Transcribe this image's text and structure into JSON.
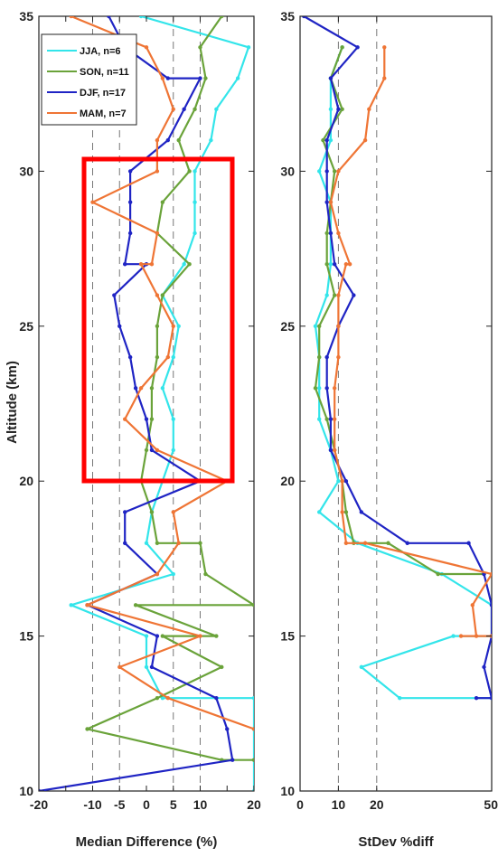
{
  "chart_data": [
    {
      "type": "line",
      "xlabel": "Median Difference (%)",
      "ylabel": "Altitude (km)",
      "xlim": [
        -20,
        20
      ],
      "ylim": [
        10,
        35
      ],
      "xticks": [
        "-20",
        "-15",
        "-10",
        "-5",
        "0",
        "5",
        "10",
        "15",
        "20"
      ],
      "xtick_labels": [
        "-20",
        "-10",
        "-5",
        "0",
        "5",
        "10",
        "20"
      ],
      "yticks": [
        "10",
        "15",
        "20",
        "25",
        "30",
        "35"
      ],
      "reference_lines_x": [
        -10,
        -5,
        5,
        10
      ],
      "legend": {
        "placement": "top-left"
      },
      "series": [
        {
          "name": "JJA, n=6",
          "color": "#33e5ea",
          "points": [
            [
              -1,
              35
            ],
            [
              19,
              34
            ],
            [
              17,
              33
            ],
            [
              13,
              32
            ],
            [
              12,
              31
            ],
            [
              9,
              30
            ],
            [
              9,
              29
            ],
            [
              9,
              28
            ],
            [
              7,
              27
            ],
            [
              3,
              26
            ],
            [
              6,
              25
            ],
            [
              5,
              24
            ],
            [
              3,
              23
            ],
            [
              5,
              22
            ],
            [
              5,
              21
            ],
            [
              3,
              20
            ],
            [
              1,
              19
            ],
            [
              0,
              18
            ],
            [
              5,
              17
            ],
            [
              -14,
              16
            ],
            [
              0,
              15
            ],
            [
              0,
              14
            ],
            [
              3,
              13
            ],
            [
              20,
              13
            ],
            [
              20,
              12
            ],
            [
              20,
              11
            ],
            [
              20,
              10
            ]
          ]
        },
        {
          "name": "SON, n=11",
          "color": "#6aa33a",
          "points": [
            [
              14,
              35
            ],
            [
              10,
              34
            ],
            [
              11,
              33
            ],
            [
              9,
              32
            ],
            [
              6,
              31
            ],
            [
              8,
              30
            ],
            [
              3,
              29
            ],
            [
              2,
              28
            ],
            [
              8,
              27
            ],
            [
              3,
              26
            ],
            [
              2,
              25
            ],
            [
              2,
              24
            ],
            [
              1,
              23
            ],
            [
              1,
              22
            ],
            [
              0,
              21
            ],
            [
              -1,
              20
            ],
            [
              1,
              19
            ],
            [
              2,
              18
            ],
            [
              10,
              18
            ],
            [
              11,
              17
            ],
            [
              20,
              16
            ],
            [
              -2,
              16
            ],
            [
              13,
              15
            ],
            [
              3,
              15
            ],
            [
              14,
              14
            ],
            [
              2,
              13
            ],
            [
              -11,
              12
            ],
            [
              14,
              11
            ],
            [
              20,
              11
            ]
          ]
        },
        {
          "name": "DJF, n=17",
          "color": "#1f24c4",
          "points": [
            [
              -7,
              35
            ],
            [
              -4,
              34
            ],
            [
              4,
              33
            ],
            [
              10,
              33
            ],
            [
              7,
              32
            ],
            [
              4,
              31
            ],
            [
              -3,
              30
            ],
            [
              -3,
              29
            ],
            [
              -3,
              28
            ],
            [
              -4,
              27
            ],
            [
              0,
              27
            ],
            [
              -6,
              26
            ],
            [
              -5,
              25
            ],
            [
              -3,
              24
            ],
            [
              -2,
              23
            ],
            [
              0,
              22
            ],
            [
              1,
              21
            ],
            [
              10,
              20
            ],
            [
              -4,
              19
            ],
            [
              -4,
              18
            ],
            [
              2,
              17
            ],
            [
              -11,
              16
            ],
            [
              2,
              15
            ],
            [
              1,
              14
            ],
            [
              13,
              13
            ],
            [
              15,
              12
            ],
            [
              16,
              11
            ],
            [
              -20,
              10
            ]
          ]
        },
        {
          "name": "MAM, n=7",
          "color": "#ef7535",
          "points": [
            [
              -14,
              35
            ],
            [
              0,
              34
            ],
            [
              3,
              33
            ],
            [
              5,
              32
            ],
            [
              2,
              31
            ],
            [
              2,
              30
            ],
            [
              -10,
              29
            ],
            [
              2,
              28
            ],
            [
              1,
              27
            ],
            [
              -1,
              27
            ],
            [
              2,
              26
            ],
            [
              5,
              25
            ],
            [
              4,
              24
            ],
            [
              -1,
              23
            ],
            [
              -4,
              22
            ],
            [
              2,
              21
            ],
            [
              15,
              20
            ],
            [
              5,
              19
            ],
            [
              6,
              18
            ],
            [
              2,
              17
            ],
            [
              -11,
              16
            ],
            [
              10,
              15
            ],
            [
              -5,
              14
            ],
            [
              4,
              13
            ],
            [
              20,
              12
            ]
          ]
        }
      ]
    },
    {
      "type": "line",
      "xlabel": "StDev %diff",
      "ylabel": "",
      "xlim": [
        0,
        50
      ],
      "ylim": [
        10,
        35
      ],
      "xticks": [
        "0",
        "10",
        "20",
        "50"
      ],
      "yticks": [
        "10",
        "15",
        "20",
        "25",
        "30",
        "35"
      ],
      "reference_lines_x": [
        10,
        20
      ],
      "series": [
        {
          "name": "JJA, n=6",
          "color": "#33e5ea",
          "points": [
            [
              11,
              34
            ],
            [
              8,
              33
            ],
            [
              8,
              32
            ],
            [
              8,
              31
            ],
            [
              5,
              30
            ],
            [
              8,
              29
            ],
            [
              8,
              28
            ],
            [
              8,
              27
            ],
            [
              7,
              26
            ],
            [
              4,
              25
            ],
            [
              5,
              24
            ],
            [
              5,
              23
            ],
            [
              5,
              22
            ],
            [
              8,
              21
            ],
            [
              10,
              20
            ],
            [
              5,
              19
            ],
            [
              15,
              18
            ],
            [
              37,
              17
            ],
            [
              50,
              16
            ],
            [
              50,
              15
            ],
            [
              40,
              15
            ],
            [
              16,
              14
            ],
            [
              26,
              13
            ],
            [
              50,
              13
            ]
          ]
        },
        {
          "name": "SON, n=11",
          "color": "#6aa33a",
          "points": [
            [
              11,
              34
            ],
            [
              8,
              33
            ],
            [
              11,
              32
            ],
            [
              6,
              31
            ],
            [
              9,
              30
            ],
            [
              8,
              29
            ],
            [
              7,
              28
            ],
            [
              7,
              27
            ],
            [
              9,
              26
            ],
            [
              5,
              25
            ],
            [
              5,
              24
            ],
            [
              4,
              23
            ],
            [
              7,
              22
            ],
            [
              9,
              21
            ],
            [
              11,
              20
            ],
            [
              12,
              19
            ],
            [
              14,
              18
            ],
            [
              23,
              18
            ],
            [
              36,
              17
            ],
            [
              48,
              17
            ]
          ]
        },
        {
          "name": "DJF, n=17",
          "color": "#1f24c4",
          "points": [
            [
              1,
              35
            ],
            [
              15,
              34
            ],
            [
              8,
              33
            ],
            [
              10,
              32
            ],
            [
              7,
              31
            ],
            [
              7,
              30
            ],
            [
              7,
              29
            ],
            [
              8,
              28
            ],
            [
              9,
              27
            ],
            [
              14,
              26
            ],
            [
              10,
              25
            ],
            [
              7,
              24
            ],
            [
              7,
              23
            ],
            [
              8,
              22
            ],
            [
              8,
              21
            ],
            [
              12,
              20
            ],
            [
              16,
              19
            ],
            [
              28,
              18
            ],
            [
              44,
              18
            ],
            [
              48,
              17
            ],
            [
              50,
              16
            ],
            [
              50,
              15
            ],
            [
              48,
              14
            ],
            [
              50,
              13
            ],
            [
              46,
              13
            ]
          ]
        },
        {
          "name": "MAM, n=7",
          "color": "#ef7535",
          "points": [
            [
              22,
              34
            ],
            [
              22,
              33
            ],
            [
              18,
              32
            ],
            [
              17,
              31
            ],
            [
              10,
              30
            ],
            [
              8,
              29
            ],
            [
              10,
              28
            ],
            [
              13,
              27
            ],
            [
              12,
              27
            ],
            [
              10,
              26
            ],
            [
              10,
              25
            ],
            [
              10,
              24
            ],
            [
              9,
              23
            ],
            [
              9,
              22
            ],
            [
              9,
              21
            ],
            [
              11,
              20
            ],
            [
              11,
              19
            ],
            [
              12,
              18
            ],
            [
              17,
              18
            ],
            [
              50,
              17
            ],
            [
              45,
              16
            ],
            [
              46,
              15
            ],
            [
              42,
              15
            ],
            [
              50,
              15
            ]
          ]
        }
      ]
    }
  ],
  "annotation": {
    "type": "highlight-box",
    "color": "#ff0000",
    "x_range": [
      -12,
      16
    ],
    "y_range": [
      20,
      30.5
    ]
  }
}
